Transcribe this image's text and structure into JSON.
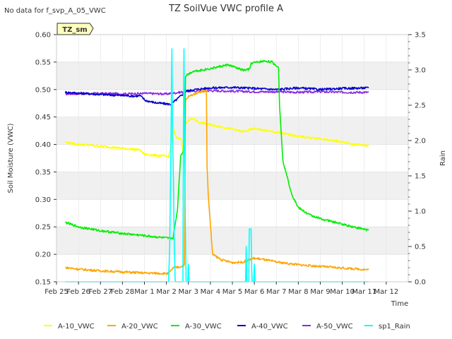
{
  "note": "No data for f_svp_A_05_VWC",
  "chart_data": {
    "type": "line",
    "title": "TZ SoilVue VWC profile A",
    "station_tag": "TZ_sm",
    "xlabel": "Time",
    "ylabel": "Soil Moisture (VWC)",
    "y2label": "Rain",
    "xlim": [
      0,
      16
    ],
    "ylim": [
      0.15,
      0.6
    ],
    "y2lim": [
      0.0,
      3.5
    ],
    "x_ticks": [
      {
        "pos": 0,
        "label": "Feb 25"
      },
      {
        "pos": 1,
        "label": "Feb 26"
      },
      {
        "pos": 2,
        "label": "Feb 27"
      },
      {
        "pos": 3,
        "label": "Feb 28"
      },
      {
        "pos": 4,
        "label": "Mar 1"
      },
      {
        "pos": 5,
        "label": "Mar 2"
      },
      {
        "pos": 6,
        "label": "Mar 3"
      },
      {
        "pos": 7,
        "label": "Mar 4"
      },
      {
        "pos": 8,
        "label": "Mar 5"
      },
      {
        "pos": 9,
        "label": "Mar 6"
      },
      {
        "pos": 10,
        "label": "Mar 7"
      },
      {
        "pos": 11,
        "label": "Mar 8"
      },
      {
        "pos": 12,
        "label": "Mar 9"
      },
      {
        "pos": 13,
        "label": "Mar 10"
      },
      {
        "pos": 14,
        "label": "Mar 11"
      },
      {
        "pos": 15,
        "label": "Mar 12"
      }
    ],
    "y_ticks": [
      "0.15",
      "0.20",
      "0.25",
      "0.30",
      "0.35",
      "0.40",
      "0.45",
      "0.50",
      "0.55",
      "0.60"
    ],
    "y2_ticks": [
      "0.0",
      "0.5",
      "1.0",
      "1.5",
      "2.0",
      "2.5",
      "3.0",
      "3.5"
    ],
    "series": [
      {
        "name": "A-10_VWC",
        "color": "#ffff00",
        "axis": "left",
        "points": [
          [
            0.4,
            0.404
          ],
          [
            1,
            0.4
          ],
          [
            2,
            0.397
          ],
          [
            3,
            0.393
          ],
          [
            3.8,
            0.39
          ],
          [
            4,
            0.382
          ],
          [
            4.6,
            0.38
          ],
          [
            5.1,
            0.378
          ],
          [
            5.2,
            0.395
          ],
          [
            5.3,
            0.432
          ],
          [
            5.45,
            0.412
          ],
          [
            5.7,
            0.41
          ],
          [
            5.75,
            0.38
          ],
          [
            5.82,
            0.44
          ],
          [
            6.2,
            0.447
          ],
          [
            6.5,
            0.44
          ],
          [
            7,
            0.436
          ],
          [
            8,
            0.428
          ],
          [
            8.5,
            0.423
          ],
          [
            9,
            0.429
          ],
          [
            10,
            0.422
          ],
          [
            11,
            0.415
          ],
          [
            12,
            0.41
          ],
          [
            13,
            0.405
          ],
          [
            13.5,
            0.4
          ],
          [
            14.2,
            0.398
          ]
        ]
      },
      {
        "name": "A-20_VWC",
        "color": "#ffa500",
        "axis": "left",
        "points": [
          [
            0.4,
            0.176
          ],
          [
            1,
            0.173
          ],
          [
            2,
            0.17
          ],
          [
            3,
            0.168
          ],
          [
            4,
            0.166
          ],
          [
            5.1,
            0.165
          ],
          [
            5.3,
            0.175
          ],
          [
            5.7,
            0.178
          ],
          [
            5.82,
            0.181
          ],
          [
            5.87,
            0.48
          ],
          [
            6,
            0.487
          ],
          [
            6.5,
            0.496
          ],
          [
            6.82,
            0.498
          ],
          [
            6.85,
            0.36
          ],
          [
            6.9,
            0.31
          ],
          [
            7.1,
            0.2
          ],
          [
            7.5,
            0.19
          ],
          [
            8,
            0.185
          ],
          [
            8.5,
            0.186
          ],
          [
            9,
            0.193
          ],
          [
            9.5,
            0.19
          ],
          [
            10,
            0.186
          ],
          [
            11,
            0.181
          ],
          [
            12,
            0.178
          ],
          [
            13,
            0.175
          ],
          [
            14.2,
            0.172
          ]
        ]
      },
      {
        "name": "A-30_VWC",
        "color": "#00ee00",
        "axis": "left",
        "points": [
          [
            0.4,
            0.258
          ],
          [
            1,
            0.25
          ],
          [
            2,
            0.243
          ],
          [
            3,
            0.238
          ],
          [
            4,
            0.234
          ],
          [
            5.1,
            0.229
          ],
          [
            5.3,
            0.23
          ],
          [
            5.5,
            0.28
          ],
          [
            5.65,
            0.38
          ],
          [
            5.82,
            0.392
          ],
          [
            5.87,
            0.525
          ],
          [
            6.2,
            0.533
          ],
          [
            7,
            0.538
          ],
          [
            7.8,
            0.545
          ],
          [
            8.5,
            0.535
          ],
          [
            8.8,
            0.537
          ],
          [
            8.85,
            0.548
          ],
          [
            9.5,
            0.552
          ],
          [
            9.8,
            0.55
          ],
          [
            10.1,
            0.54
          ],
          [
            10.15,
            0.47
          ],
          [
            10.3,
            0.37
          ],
          [
            10.5,
            0.34
          ],
          [
            10.7,
            0.31
          ],
          [
            11,
            0.285
          ],
          [
            11.5,
            0.272
          ],
          [
            12,
            0.265
          ],
          [
            13,
            0.255
          ],
          [
            13.5,
            0.25
          ],
          [
            14.2,
            0.244
          ]
        ]
      },
      {
        "name": "A-40_VWC",
        "color": "#0000cc",
        "axis": "left",
        "points": [
          [
            0.4,
            0.495
          ],
          [
            2,
            0.491
          ],
          [
            3.6,
            0.488
          ],
          [
            3.8,
            0.489
          ],
          [
            4.05,
            0.48
          ],
          [
            4.5,
            0.476
          ],
          [
            5.2,
            0.473
          ],
          [
            5.5,
            0.483
          ],
          [
            5.9,
            0.497
          ],
          [
            6.3,
            0.5
          ],
          [
            7,
            0.503
          ],
          [
            8,
            0.504
          ],
          [
            9,
            0.502
          ],
          [
            10,
            0.5
          ],
          [
            11,
            0.503
          ],
          [
            12,
            0.5
          ],
          [
            13,
            0.502
          ],
          [
            14.2,
            0.503
          ]
        ]
      },
      {
        "name": "A-50_VWC",
        "color": "#8a2be2",
        "axis": "left",
        "points": [
          [
            0.4,
            0.492
          ],
          [
            2,
            0.493
          ],
          [
            3,
            0.492
          ],
          [
            4,
            0.493
          ],
          [
            5,
            0.492
          ],
          [
            6,
            0.497
          ],
          [
            7,
            0.498
          ],
          [
            8,
            0.497
          ],
          [
            9,
            0.496
          ],
          [
            10,
            0.496
          ],
          [
            11,
            0.495
          ],
          [
            12,
            0.496
          ],
          [
            13,
            0.495
          ],
          [
            14.2,
            0.495
          ]
        ]
      },
      {
        "name": "sp1_Rain",
        "color": "#00ffff",
        "axis": "right",
        "points": [
          [
            0.4,
            0
          ],
          [
            5.1,
            0
          ],
          [
            5.15,
            0.5
          ],
          [
            5.2,
            1.7
          ],
          [
            5.25,
            3.3
          ],
          [
            5.28,
            2.1
          ],
          [
            5.32,
            1.4
          ],
          [
            5.36,
            0.5
          ],
          [
            5.4,
            0
          ],
          [
            5.75,
            0
          ],
          [
            5.78,
            2.5
          ],
          [
            5.8,
            3.3
          ],
          [
            5.82,
            2.2
          ],
          [
            5.85,
            1.1
          ],
          [
            5.88,
            0.4
          ],
          [
            5.9,
            0
          ],
          [
            5.97,
            0
          ],
          [
            6,
            0.25
          ],
          [
            6.03,
            0
          ],
          [
            8.6,
            0
          ],
          [
            8.63,
            0.5
          ],
          [
            8.66,
            0
          ],
          [
            8.75,
            0
          ],
          [
            8.77,
            0.75
          ],
          [
            8.85,
            0.75
          ],
          [
            8.88,
            0.2
          ],
          [
            8.9,
            0
          ],
          [
            8.97,
            0
          ],
          [
            9,
            0.25
          ],
          [
            9.03,
            0
          ],
          [
            14.2,
            0
          ]
        ]
      }
    ]
  }
}
